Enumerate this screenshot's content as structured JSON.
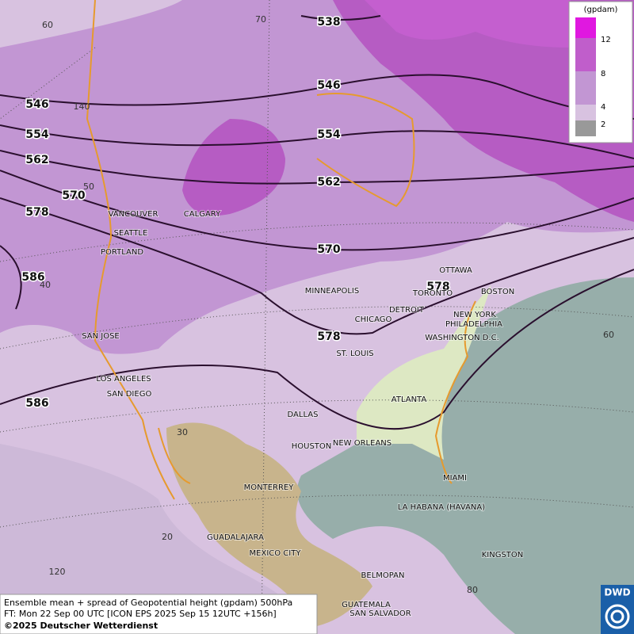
{
  "map": {
    "contour_labels": [
      "538",
      "546",
      "546",
      "554",
      "554",
      "562",
      "562",
      "570",
      "570",
      "578",
      "578",
      "578",
      "586",
      "586"
    ],
    "cities": [
      "VANCOUVER",
      "CALGARY",
      "SEATTLE",
      "PORTLAND",
      "MINNEAPOLIS",
      "OTTAWA",
      "TORONTO",
      "BOSTON",
      "DETROIT",
      "CHICAGO",
      "NEW YORK",
      "PHILADELPHIA",
      "WASHINGTON D.C.",
      "SAN JOSE",
      "ST. LOUIS",
      "LOS ANGELES",
      "SAN DIEGO",
      "ATLANTA",
      "DALLAS",
      "HOUSTON",
      "NEW ORLEANS",
      "MIAMI",
      "MONTERREY",
      "LA HABANA (HAVANA)",
      "GUADALAJARA",
      "MEXICO CITY",
      "KINGSTON",
      "BELMOPAN",
      "GUATEMALA",
      "SAN SALVADOR"
    ],
    "grid_labels": [
      "70",
      "60",
      "50",
      "40",
      "30",
      "20",
      "60",
      "80",
      "120",
      "140"
    ]
  },
  "legend": {
    "unit": "(gpdam)",
    "levels": [
      "12",
      "8",
      "4",
      "2"
    ]
  },
  "footer": {
    "line1": "Ensemble mean + spread of Geopotential height (gpdam) 500hPa",
    "line2": "FT: Mon 22 Sep 00 UTC [ICON EPS 2025 Sep 15 12UTC +156h]",
    "line3": "©2025 Deutscher Wetterdienst"
  },
  "logo": {
    "text": "DWD"
  }
}
